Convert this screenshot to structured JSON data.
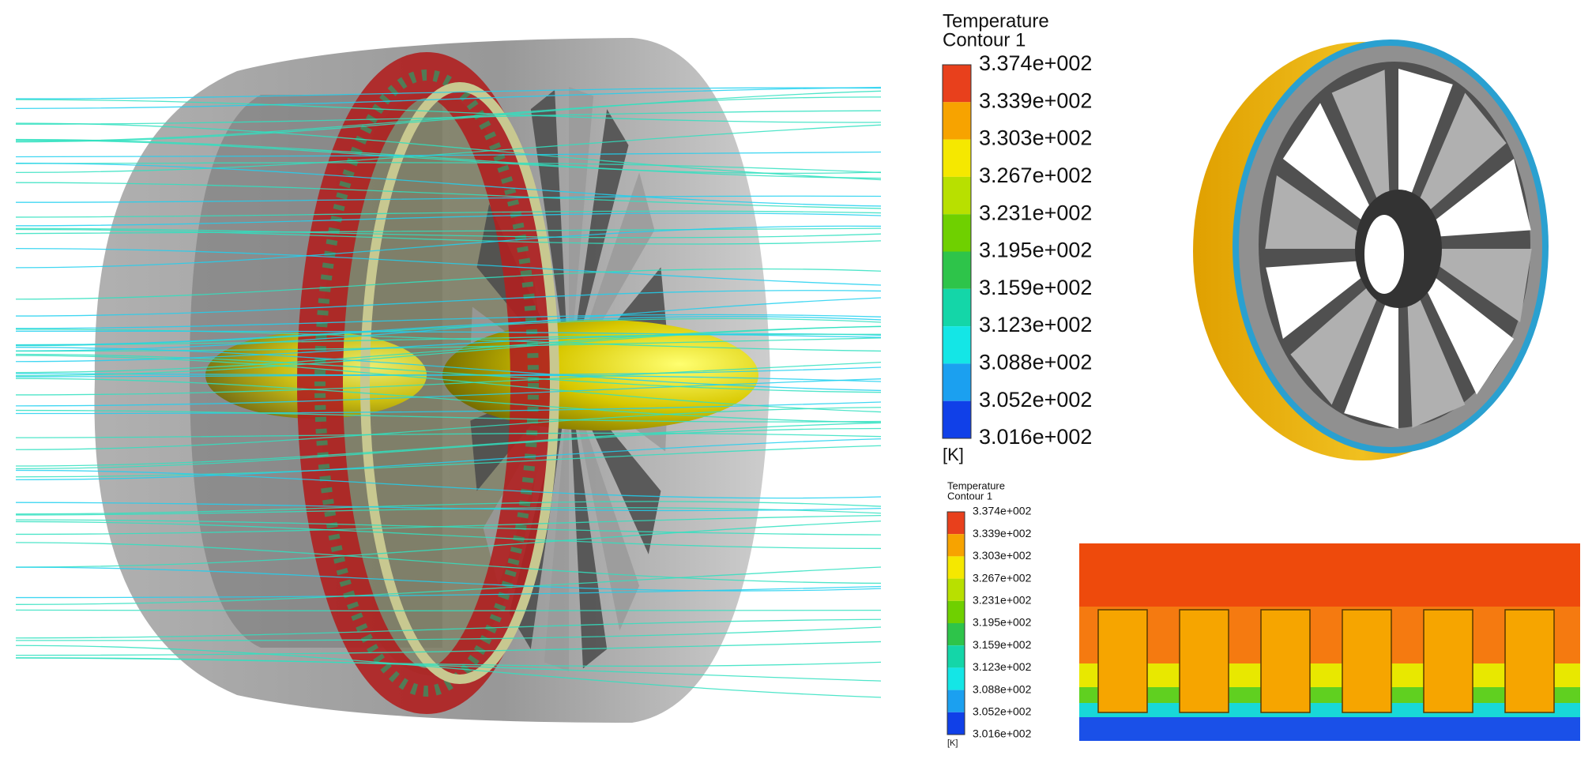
{
  "legend_main": {
    "title": [
      "Temperature",
      "Contour 1"
    ],
    "labels": [
      "3.374e+002",
      "3.339e+002",
      "3.303e+002",
      "3.267e+002",
      "3.231e+002",
      "3.195e+002",
      "3.159e+002",
      "3.123e+002",
      "3.088e+002",
      "3.052e+002",
      "3.016e+002"
    ],
    "unit": "[K]"
  },
  "legend_small": {
    "title": [
      "Temperature",
      "Contour 1"
    ],
    "labels": [
      "3.374e+002",
      "3.339e+002",
      "3.303e+002",
      "3.267e+002",
      "3.231e+002",
      "3.195e+002",
      "3.159e+002",
      "3.123e+002",
      "3.088e+002",
      "3.052e+002",
      "3.016e+002"
    ],
    "unit": "[K]"
  }
}
